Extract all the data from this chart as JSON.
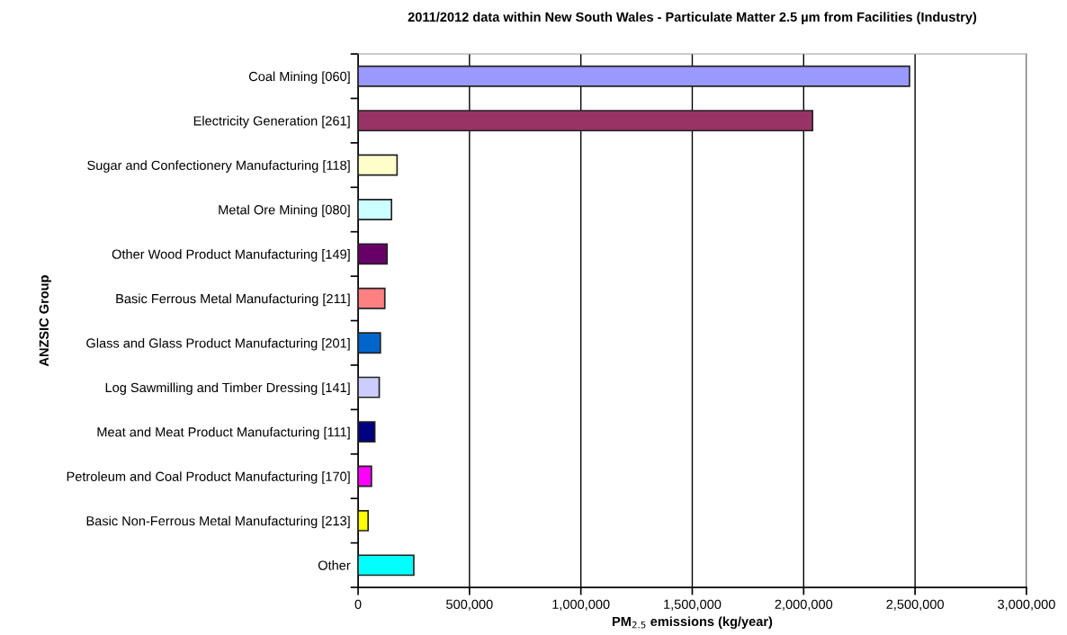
{
  "chart_data": {
    "type": "bar",
    "orientation": "horizontal",
    "title": "2011/2012 data within New South Wales - Particulate Matter 2.5 µm from Facilities (Industry)",
    "xlabel": "PM$_{2.5}$ emissions (kg/year)",
    "ylabel": "ANZSIC Group",
    "categories": [
      "Coal Mining [060]",
      "Electricity Generation [261]",
      "Sugar and Confectionery Manufacturing [118]",
      "Metal Ore Mining [080]",
      "Other Wood Product Manufacturing [149]",
      "Basic Ferrous Metal Manufacturing [211]",
      "Glass and Glass Product Manufacturing [201]",
      "Log Sawmilling and Timber Dressing [141]",
      "Meat and Meat Product Manufacturing [111]",
      "Petroleum and Coal Product Manufacturing [170]",
      "Basic Non-Ferrous Metal Manufacturing [213]",
      "Other"
    ],
    "values": [
      2475000,
      2040000,
      175000,
      150000,
      130000,
      120000,
      100000,
      95000,
      75000,
      60000,
      45000,
      250000
    ],
    "colors": [
      "#9999ff",
      "#993366",
      "#ffffcc",
      "#ccffff",
      "#660066",
      "#ff8080",
      "#0066cc",
      "#ccccff",
      "#000080",
      "#ff00ff",
      "#ffff00",
      "#00ffff"
    ],
    "xlim": [
      0,
      3000000
    ],
    "xticks": [
      {
        "value": 0,
        "label": "0"
      },
      {
        "value": 500000,
        "label": "500,000"
      },
      {
        "value": 1000000,
        "label": "1,000,000"
      },
      {
        "value": 1500000,
        "label": "1,500,000"
      },
      {
        "value": 2000000,
        "label": "2,000,000"
      },
      {
        "value": 2500000,
        "label": "2,500,000"
      },
      {
        "value": 3000000,
        "label": "3,000,000"
      }
    ],
    "grid": "x",
    "legend": false
  }
}
